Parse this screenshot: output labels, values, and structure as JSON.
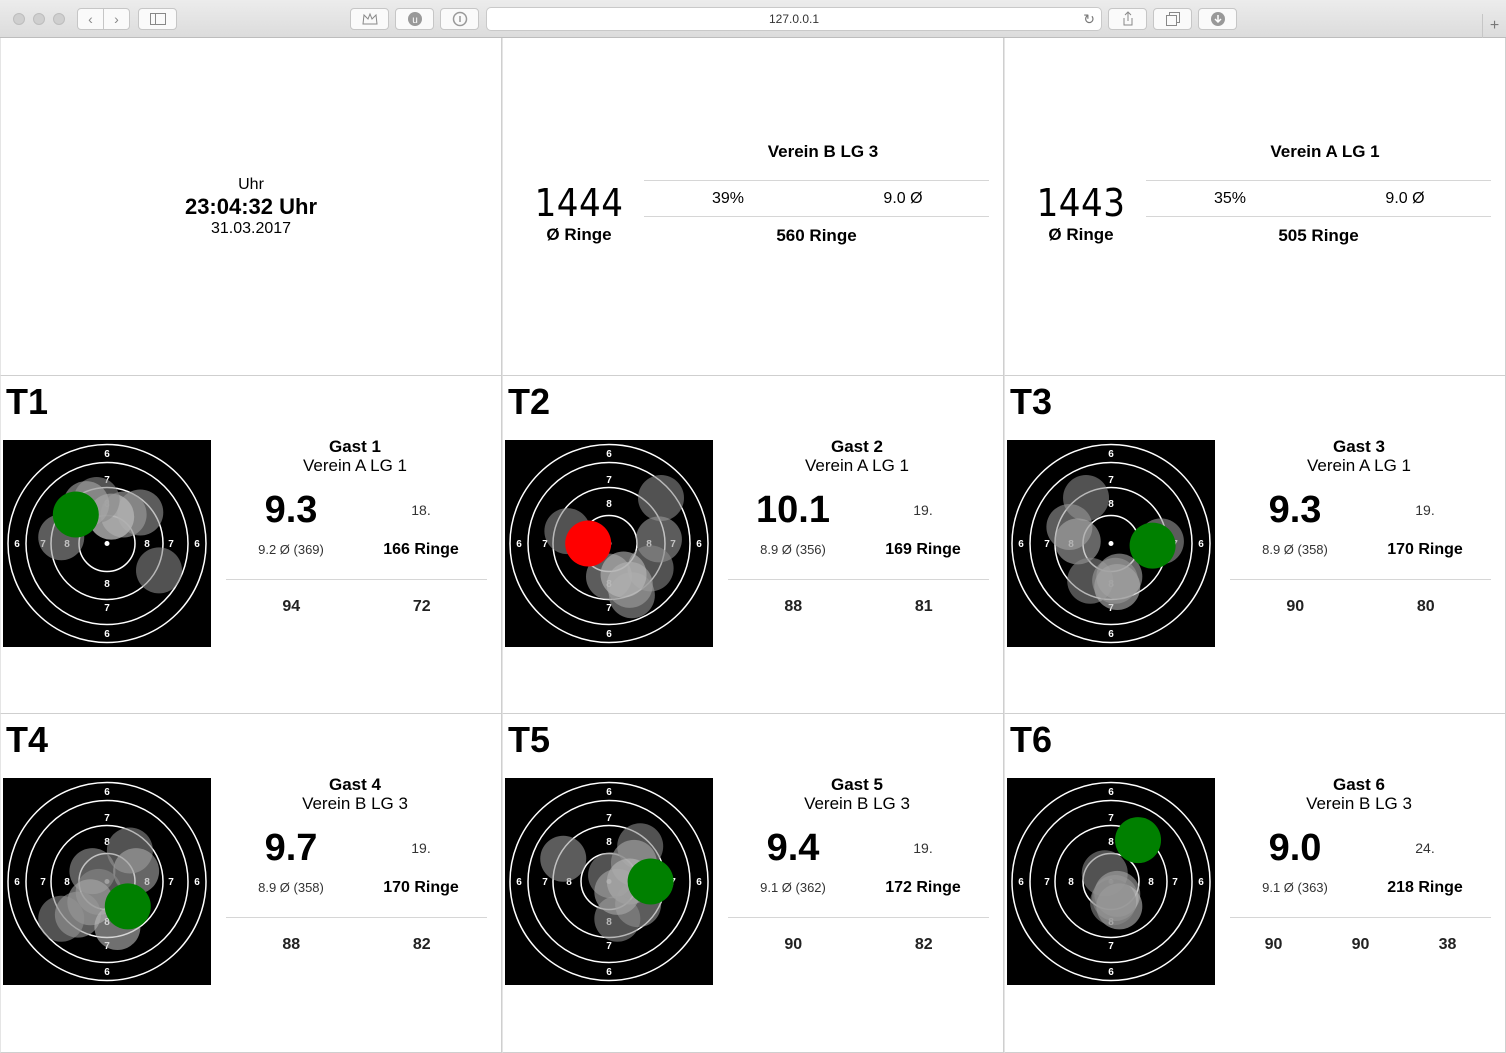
{
  "browser": {
    "url": "127.0.0.1"
  },
  "clock": {
    "label": "Uhr",
    "time": "23:04:32 Uhr",
    "date": "31.03.2017"
  },
  "teams": [
    {
      "name": "Verein B LG 3",
      "total": "1444",
      "avg_label": "Ø Ringe",
      "percent": "39%",
      "avg": "9.0 Ø",
      "ringe": "560 Ringe"
    },
    {
      "name": "Verein A LG 1",
      "total": "1443",
      "avg_label": "Ø Ringe",
      "percent": "35%",
      "avg": "9.0 Ø",
      "ringe": "505 Ringe"
    }
  ],
  "shooters": [
    {
      "lane": "T1",
      "name": "Gast 1",
      "club": "Verein A LG 1",
      "last_shot": "9.3",
      "rank": "18.",
      "avg": "9.2 Ø (369)",
      "ringe": "166 Ringe",
      "series": [
        "94",
        "72"
      ],
      "shots": [
        [
          0.52,
          0.37,
          "#888"
        ],
        [
          0.58,
          0.36,
          "#aaa"
        ],
        [
          0.66,
          0.35,
          "#999"
        ],
        [
          0.52,
          0.37,
          "#bbb"
        ],
        [
          0.45,
          0.29,
          "#888"
        ],
        [
          0.28,
          0.47,
          "#999"
        ],
        [
          0.75,
          0.63,
          "#888"
        ],
        [
          0.4,
          0.31,
          "#aaa"
        ]
      ],
      "last": [
        0.35,
        0.36,
        "#008000"
      ]
    },
    {
      "lane": "T2",
      "name": "Gast 2",
      "club": "Verein A LG 1",
      "last_shot": "10.1",
      "rank": "19.",
      "avg": "8.9 Ø (356)",
      "ringe": "169 Ringe",
      "series": [
        "88",
        "81"
      ],
      "shots": [
        [
          0.75,
          0.28,
          "#888"
        ],
        [
          0.74,
          0.48,
          "#999"
        ],
        [
          0.7,
          0.62,
          "#888"
        ],
        [
          0.5,
          0.66,
          "#999"
        ],
        [
          0.6,
          0.7,
          "#aaa"
        ],
        [
          0.61,
          0.75,
          "#999"
        ],
        [
          0.3,
          0.44,
          "#888"
        ],
        [
          0.57,
          0.65,
          "#bbb"
        ]
      ],
      "last": [
        0.4,
        0.5,
        "#ff0000"
      ]
    },
    {
      "lane": "T3",
      "name": "Gast 3",
      "club": "Verein A LG 1",
      "last_shot": "9.3",
      "rank": "19.",
      "avg": "8.9 Ø (358)",
      "ringe": "170 Ringe",
      "series": [
        "90",
        "80"
      ],
      "shots": [
        [
          0.38,
          0.28,
          "#888"
        ],
        [
          0.3,
          0.42,
          "#999"
        ],
        [
          0.34,
          0.49,
          "#aaa"
        ],
        [
          0.74,
          0.49,
          "#999"
        ],
        [
          0.4,
          0.68,
          "#888"
        ],
        [
          0.54,
          0.66,
          "#aaa"
        ],
        [
          0.53,
          0.71,
          "#bbb"
        ],
        [
          0.52,
          0.68,
          "#999"
        ]
      ],
      "last": [
        0.7,
        0.51,
        "#008000"
      ]
    },
    {
      "lane": "T4",
      "name": "Gast 4",
      "club": "Verein B LG 3",
      "last_shot": "9.7",
      "rank": "19.",
      "avg": "8.9 Ø (358)",
      "ringe": "170 Ringe",
      "series": [
        "88",
        "82"
      ],
      "shots": [
        [
          0.61,
          0.35,
          "#888"
        ],
        [
          0.64,
          0.45,
          "#aaa"
        ],
        [
          0.43,
          0.45,
          "#999"
        ],
        [
          0.46,
          0.55,
          "#888"
        ],
        [
          0.42,
          0.6,
          "#aaa"
        ],
        [
          0.28,
          0.68,
          "#888"
        ],
        [
          0.36,
          0.66,
          "#999"
        ],
        [
          0.55,
          0.72,
          "#bbb"
        ]
      ],
      "last": [
        0.6,
        0.62,
        "#008000"
      ]
    },
    {
      "lane": "T5",
      "name": "Gast 5",
      "club": "Verein B LG 3",
      "last_shot": "9.4",
      "rank": "19.",
      "avg": "9.1 Ø (362)",
      "ringe": "172 Ringe",
      "series": [
        "90",
        "82"
      ],
      "shots": [
        [
          0.65,
          0.33,
          "#888"
        ],
        [
          0.62,
          0.41,
          "#aaa"
        ],
        [
          0.28,
          0.39,
          "#999"
        ],
        [
          0.51,
          0.47,
          "#888"
        ],
        [
          0.6,
          0.5,
          "#bbb"
        ],
        [
          0.64,
          0.61,
          "#999"
        ],
        [
          0.54,
          0.68,
          "#888"
        ],
        [
          0.54,
          0.55,
          "#aaa"
        ]
      ],
      "last": [
        0.7,
        0.5,
        "#008000"
      ]
    },
    {
      "lane": "T6",
      "name": "Gast 6",
      "club": "Verein B LG 3",
      "last_shot": "9.0",
      "rank": "24.",
      "avg": "9.1 Ø (363)",
      "ringe": "218 Ringe",
      "series": [
        "90",
        "90",
        "38"
      ],
      "shots": [
        [
          0.47,
          0.46,
          "#888"
        ],
        [
          0.53,
          0.56,
          "#aaa"
        ],
        [
          0.52,
          0.58,
          "#999"
        ],
        [
          0.54,
          0.62,
          "#bbb"
        ],
        [
          0.51,
          0.6,
          "#888"
        ]
      ],
      "last": [
        0.63,
        0.3,
        "#008000"
      ]
    }
  ]
}
